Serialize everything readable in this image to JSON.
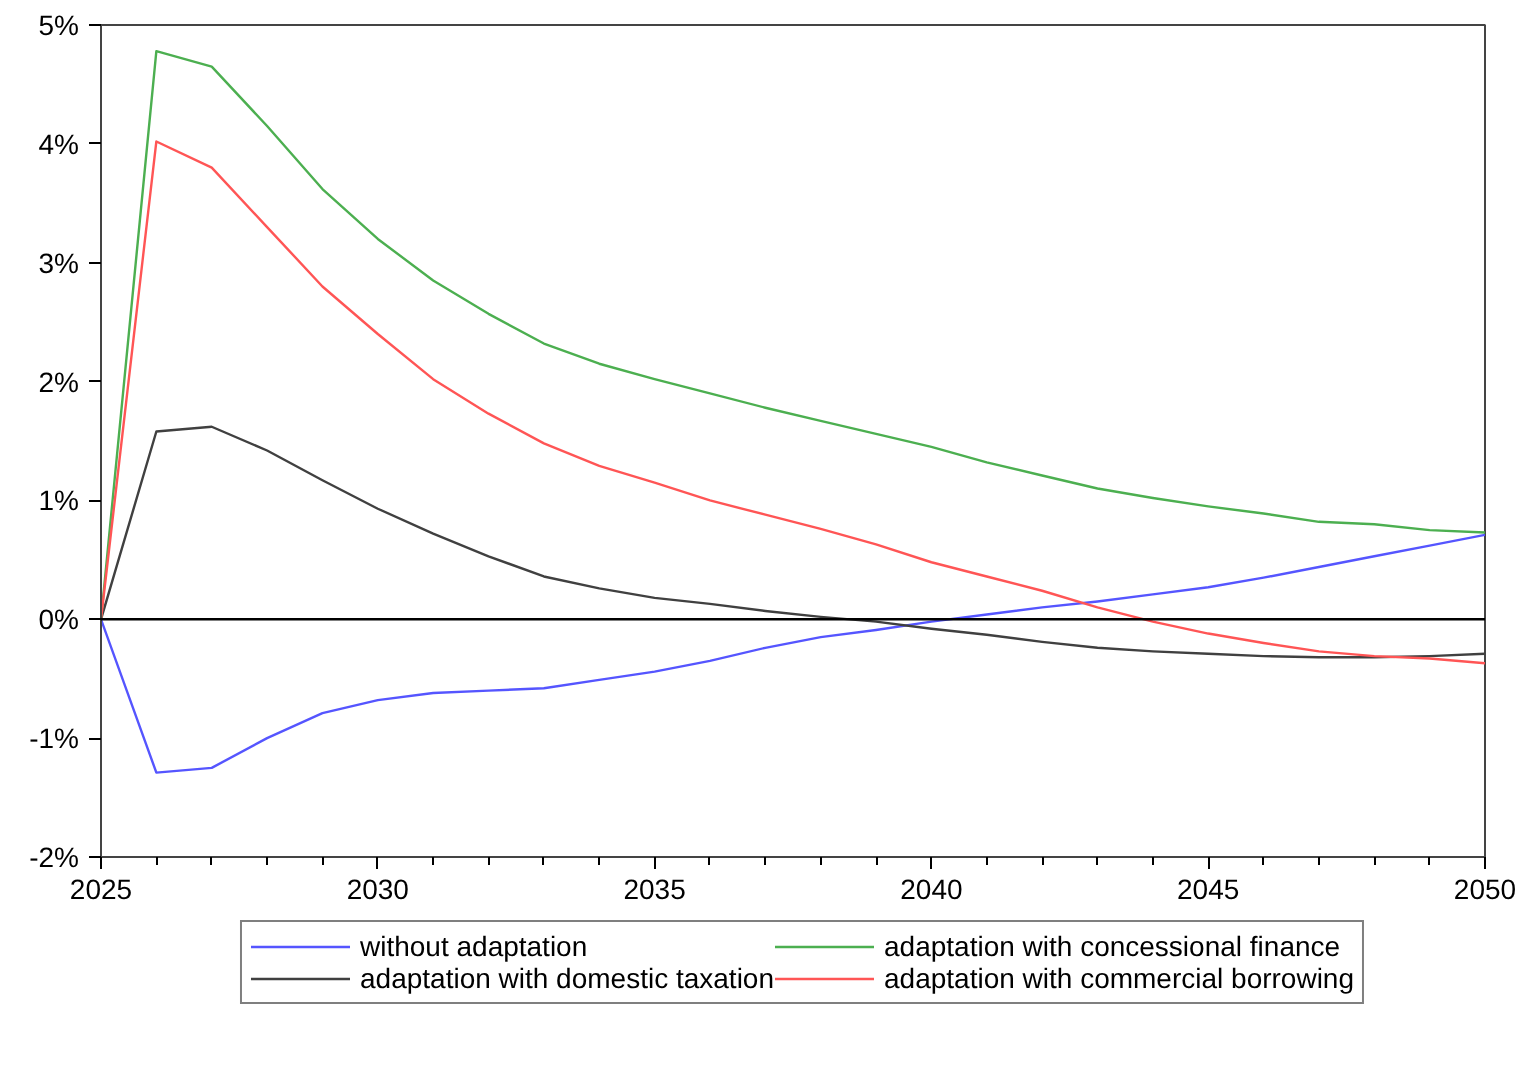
{
  "chart_data": {
    "type": "line",
    "x": [
      2025,
      2026,
      2027,
      2028,
      2029,
      2030,
      2031,
      2032,
      2033,
      2034,
      2035,
      2036,
      2037,
      2038,
      2039,
      2040,
      2041,
      2042,
      2043,
      2044,
      2045,
      2046,
      2047,
      2048,
      2049,
      2050
    ],
    "series": [
      {
        "name": "without adaptation",
        "color": "#5555ff",
        "values": [
          0,
          -1.29,
          -1.25,
          -1.0,
          -0.79,
          -0.68,
          -0.62,
          -0.6,
          -0.58,
          -0.51,
          -0.44,
          -0.35,
          -0.24,
          -0.15,
          -0.09,
          -0.02,
          0.04,
          0.1,
          0.15,
          0.21,
          0.27,
          0.35,
          0.44,
          0.53,
          0.62,
          0.71
        ]
      },
      {
        "name": "adaptation with domestic taxation",
        "color": "#404040",
        "values": [
          0,
          1.58,
          1.62,
          1.42,
          1.17,
          0.93,
          0.72,
          0.53,
          0.36,
          0.26,
          0.18,
          0.13,
          0.07,
          0.02,
          -0.02,
          -0.08,
          -0.13,
          -0.19,
          -0.24,
          -0.27,
          -0.29,
          -0.31,
          -0.32,
          -0.32,
          -0.31,
          -0.29
        ]
      },
      {
        "name": "adaptation with concessional finance",
        "color": "#4caf50",
        "values": [
          0,
          4.78,
          4.65,
          4.15,
          3.62,
          3.2,
          2.85,
          2.57,
          2.32,
          2.15,
          2.02,
          1.9,
          1.78,
          1.67,
          1.56,
          1.45,
          1.32,
          1.21,
          1.1,
          1.02,
          0.95,
          0.89,
          0.82,
          0.8,
          0.75,
          0.73
        ]
      },
      {
        "name": "adaptation with commercial borrowing",
        "color": "#ff5555",
        "values": [
          0,
          4.02,
          3.8,
          3.3,
          2.8,
          2.4,
          2.02,
          1.73,
          1.48,
          1.29,
          1.15,
          1.0,
          0.88,
          0.76,
          0.63,
          0.48,
          0.36,
          0.24,
          0.1,
          -0.02,
          -0.12,
          -0.2,
          -0.27,
          -0.31,
          -0.33,
          -0.37
        ]
      }
    ],
    "xlim": [
      2025,
      2050
    ],
    "xticks": [
      2025,
      2030,
      2035,
      2040,
      2045,
      2050
    ],
    "ylim": [
      -2,
      5
    ],
    "yticks": [
      {
        "value": -2,
        "label": "-2%"
      },
      {
        "value": -1,
        "label": "-1%"
      },
      {
        "value": 0,
        "label": "0%"
      },
      {
        "value": 1,
        "label": "1%"
      },
      {
        "value": 2,
        "label": "2%"
      },
      {
        "value": 3,
        "label": "3%"
      },
      {
        "value": 4,
        "label": "4%"
      },
      {
        "value": 5,
        "label": "5%"
      }
    ],
    "ref_lines": [
      {
        "axis": "y",
        "value": 0,
        "color": "#000000"
      }
    ],
    "grid": false,
    "legend": "bottom",
    "marker": "none",
    "line_style": "solid"
  }
}
